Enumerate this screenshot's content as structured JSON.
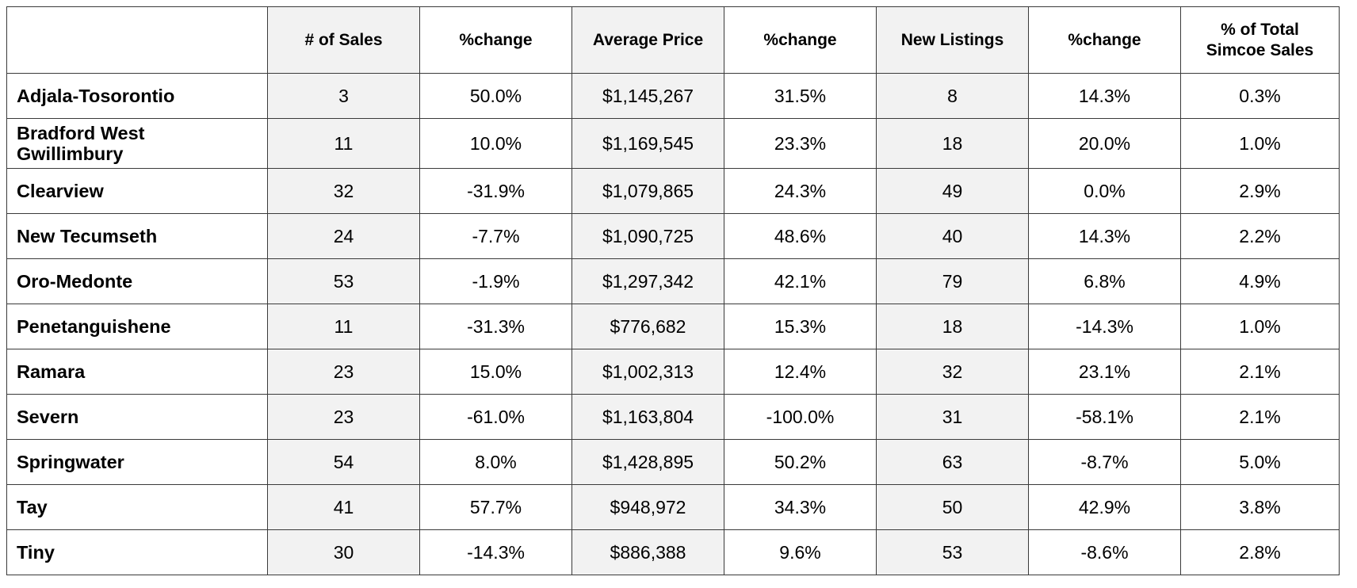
{
  "chart_data": {
    "type": "table",
    "columns": [
      "",
      "# of Sales",
      "%change",
      "Average Price",
      "%change",
      "New Listings",
      "%change",
      "% of Total\nSimcoe Sales"
    ],
    "rows": [
      [
        "Adjala-Tosorontio",
        "3",
        "50.0%",
        "$1,145,267",
        "31.5%",
        "8",
        "14.3%",
        "0.3%"
      ],
      [
        "Bradford West\nGwillimbury",
        "11",
        "10.0%",
        "$1,169,545",
        "23.3%",
        "18",
        "20.0%",
        "1.0%"
      ],
      [
        "Clearview",
        "32",
        "-31.9%",
        "$1,079,865",
        "24.3%",
        "49",
        "0.0%",
        "2.9%"
      ],
      [
        "New Tecumseth",
        "24",
        "-7.7%",
        "$1,090,725",
        "48.6%",
        "40",
        "14.3%",
        "2.2%"
      ],
      [
        "Oro-Medonte",
        "53",
        "-1.9%",
        "$1,297,342",
        "42.1%",
        "79",
        "6.8%",
        "4.9%"
      ],
      [
        "Penetanguishene",
        "11",
        "-31.3%",
        "$776,682",
        "15.3%",
        "18",
        "-14.3%",
        "1.0%"
      ],
      [
        "Ramara",
        "23",
        "15.0%",
        "$1,002,313",
        "12.4%",
        "32",
        "23.1%",
        "2.1%"
      ],
      [
        "Severn",
        "23",
        "-61.0%",
        "$1,163,804",
        "-100.0%",
        "31",
        "-58.1%",
        "2.1%"
      ],
      [
        "Springwater",
        "54",
        "8.0%",
        "$1,428,895",
        "50.2%",
        "63",
        "-8.7%",
        "5.0%"
      ],
      [
        "Tay",
        "41",
        "57.7%",
        "$948,972",
        "34.3%",
        "50",
        "42.9%",
        "3.8%"
      ],
      [
        "Tiny",
        "30",
        "-14.3%",
        "$886,388",
        "9.6%",
        "53",
        "-8.6%",
        "2.8%"
      ]
    ]
  },
  "colors": {
    "shaded_column": "#f2f2f2",
    "border": "#3a3a3a",
    "text": "#000000"
  }
}
